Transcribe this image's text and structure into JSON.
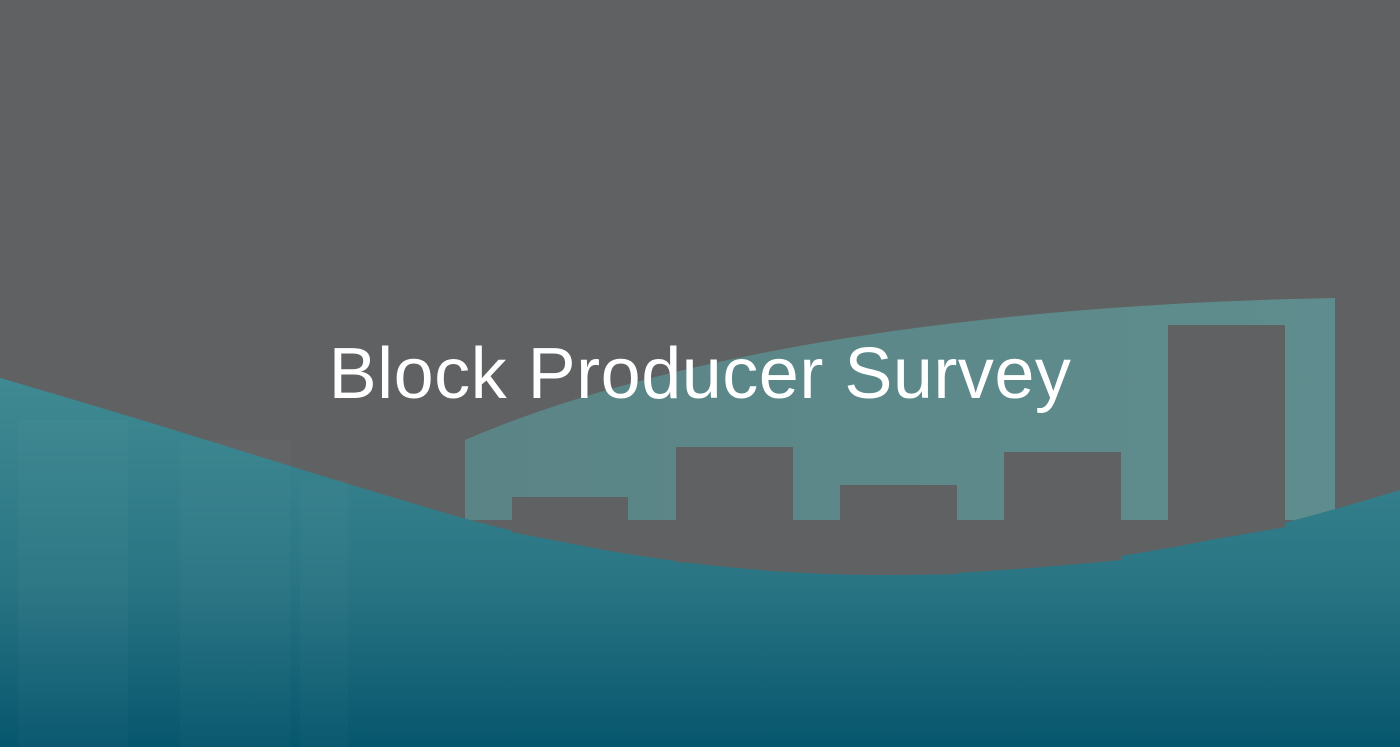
{
  "banner": {
    "title": "Block Producer Survey"
  },
  "colors": {
    "background": "#606162",
    "wave_light": "#5f8c8e",
    "wave_teal": "#2f7f8c",
    "wave_deep": "#0a5a70",
    "bar_fill": "#606162",
    "title_text": "#ffffff"
  },
  "decoration": {
    "type": "abstract bar chart silhouette over teal waves",
    "bar_count": 5
  }
}
